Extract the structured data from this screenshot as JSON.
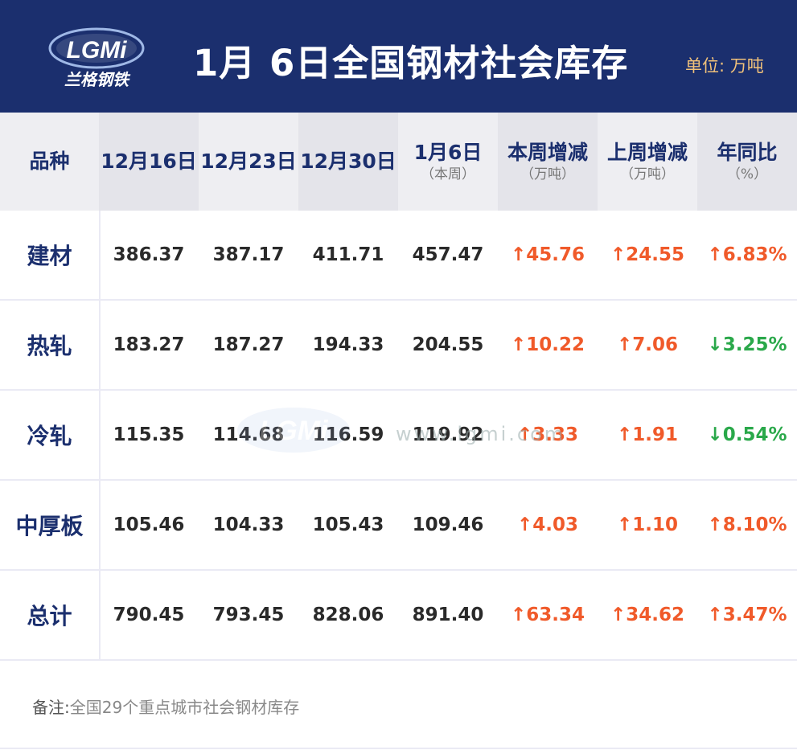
{
  "header": {
    "logo_text": "LGMi",
    "logo_sub": "兰格钢铁",
    "title": "1月 6日全国钢材社会库存",
    "unit": "单位: 万吨",
    "bg_color": "#1b2f6e"
  },
  "table": {
    "columns": [
      {
        "label": "品种",
        "sub": ""
      },
      {
        "label": "12月16日",
        "sub": ""
      },
      {
        "label": "12月23日",
        "sub": ""
      },
      {
        "label": "12月30日",
        "sub": ""
      },
      {
        "label": "1月6日",
        "sub": "（本周）"
      },
      {
        "label": "本周增减",
        "sub": "（万吨）"
      },
      {
        "label": "上周增减",
        "sub": "（万吨）"
      },
      {
        "label": "年同比",
        "sub": "（%）"
      }
    ],
    "rows": [
      {
        "name": "建材",
        "v1": "386.37",
        "v2": "387.17",
        "v3": "411.71",
        "v4": "457.47",
        "wk": "↑45.76",
        "pwk": "↑24.55",
        "yoy": "↑6.83%",
        "wk_dir": "up",
        "pwk_dir": "up",
        "yoy_dir": "up"
      },
      {
        "name": "热轧",
        "v1": "183.27",
        "v2": "187.27",
        "v3": "194.33",
        "v4": "204.55",
        "wk": "↑10.22",
        "pwk": "↑7.06",
        "yoy": "↓3.25%",
        "wk_dir": "up",
        "pwk_dir": "up",
        "yoy_dir": "down"
      },
      {
        "name": "冷轧",
        "v1": "115.35",
        "v2": "114.68",
        "v3": "116.59",
        "v4": "119.92",
        "wk": "↑3.33",
        "pwk": "↑1.91",
        "yoy": "↓0.54%",
        "wk_dir": "up",
        "pwk_dir": "up",
        "yoy_dir": "down"
      },
      {
        "name": "中厚板",
        "v1": "105.46",
        "v2": "104.33",
        "v3": "105.43",
        "v4": "109.46",
        "wk": "↑4.03",
        "pwk": "↑1.10",
        "yoy": "↑8.10%",
        "wk_dir": "up",
        "pwk_dir": "up",
        "yoy_dir": "up"
      },
      {
        "name": "总计",
        "v1": "790.45",
        "v2": "793.45",
        "v3": "828.06",
        "v4": "891.40",
        "wk": "↑63.34",
        "pwk": "↑34.62",
        "yoy": "↑3.47%",
        "wk_dir": "up",
        "pwk_dir": "up",
        "yoy_dir": "up"
      }
    ]
  },
  "note": {
    "label": "备注:",
    "text": "全国29个重点城市社会钢材库存"
  },
  "watermark": {
    "logo_text": "LGMi",
    "url_text": "www.lgmi.com"
  },
  "colors": {
    "up": "#f05a2a",
    "down": "#2aa84a",
    "accent": "#1b2f6e",
    "unit": "#f2c27a"
  }
}
